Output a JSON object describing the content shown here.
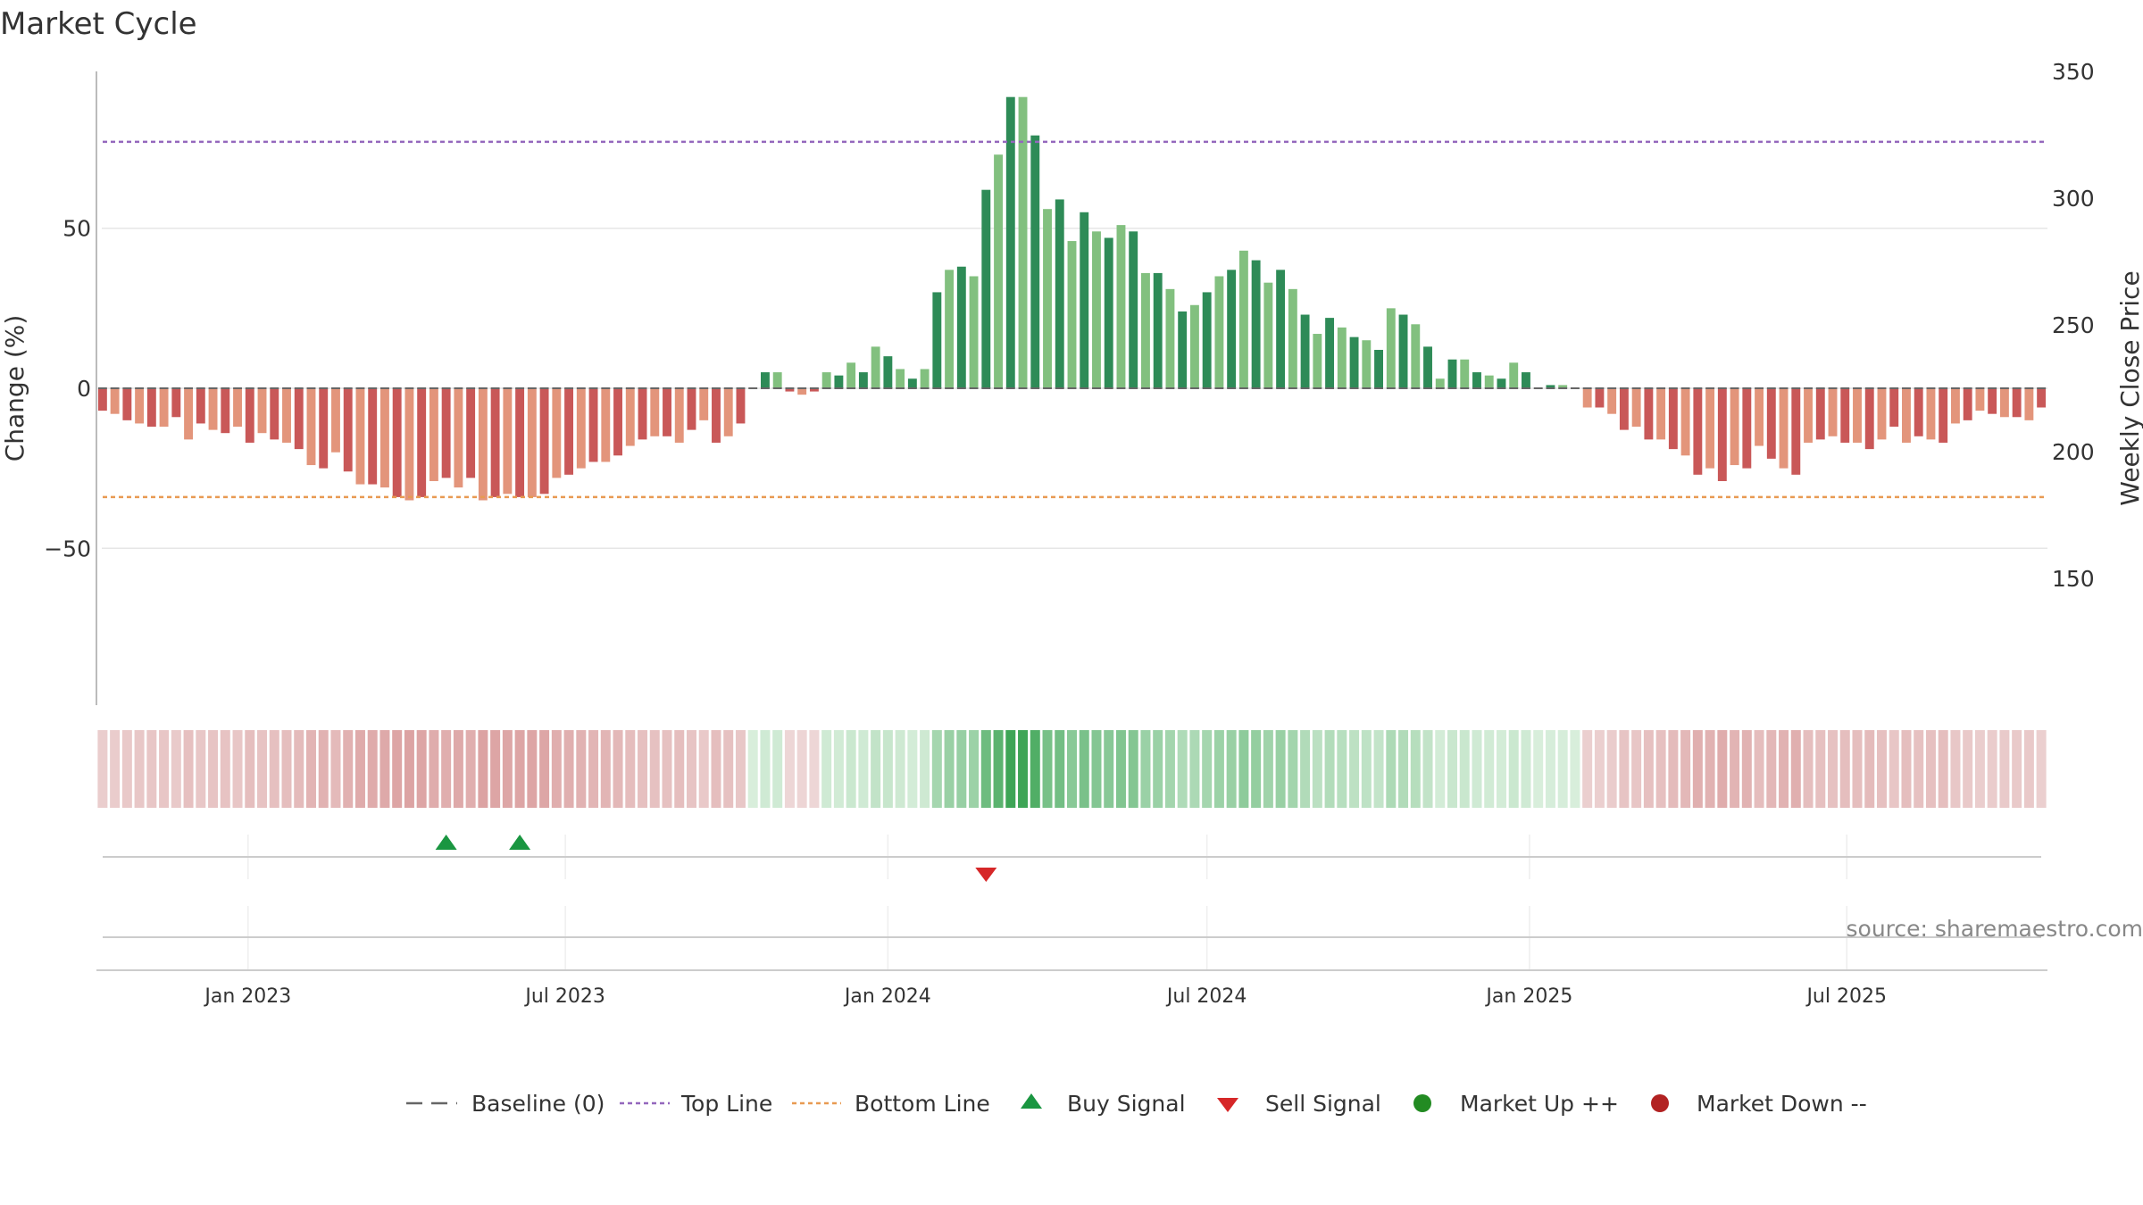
{
  "chart_data": {
    "type": "bar",
    "title": "Market Cycle",
    "ylabel_left": "Change (%)",
    "ylabel_right": "Weekly Close Price",
    "source": "source: sharemaestro.com",
    "x_ticks": [
      "Jan 2023",
      "Jul 2023",
      "Jan 2024",
      "Jul 2024",
      "Jan 2025",
      "Jul 2025"
    ],
    "y_left_ticks": [
      "50",
      "0",
      "−50"
    ],
    "y_left_tick_values": [
      50,
      0,
      -50
    ],
    "y_left_range": [
      -99,
      99
    ],
    "y_right_ticks": [
      "350",
      "300",
      "250",
      "200",
      "150"
    ],
    "y_right_tick_values": [
      350,
      300,
      250,
      200,
      150
    ],
    "y_right_range": [
      100,
      350
    ],
    "top_line": 77,
    "bottom_line": -34,
    "grid": true,
    "legend_position": "bottom",
    "legend": [
      "Baseline (0)",
      "Top Line",
      "Bottom Line",
      "Buy Signal",
      "Sell Signal",
      "Market Up ++",
      "Market Down --"
    ],
    "colors": {
      "up_strong": "#2e8b57",
      "up_light": "#82c07f",
      "down_strong": "#c95858",
      "down_light": "#e3957b",
      "top_line": "#9467bd",
      "bottom_line": "#e89a52",
      "buy": "#1a9641",
      "sell": "#d62728",
      "market_up": "#228b22",
      "market_down": "#b22222",
      "baseline": "#666666"
    },
    "start_week": "2022-10-10",
    "weekly_change": [
      -7,
      -8,
      -10,
      -11,
      -12,
      -12,
      -9,
      -16,
      -11,
      -13,
      -14,
      -12,
      -17,
      -14,
      -16,
      -17,
      -19,
      -24,
      -25,
      -20,
      -26,
      -30,
      -30,
      -31,
      -34,
      -35,
      -34,
      -29,
      -28,
      -31,
      -28,
      -35,
      -34,
      -33,
      -34,
      -34,
      -33,
      -28,
      -27,
      -25,
      -23,
      -23,
      -21,
      -18,
      -16,
      -15,
      -15,
      -17,
      -13,
      -10,
      -17,
      -15,
      -11,
      0,
      5,
      5,
      -1,
      -2,
      -1,
      5,
      4,
      8,
      5,
      13,
      10,
      6,
      3,
      6,
      30,
      37,
      38,
      35,
      62,
      73,
      91,
      91,
      79,
      56,
      59,
      46,
      55,
      49,
      47,
      51,
      49,
      36,
      36,
      31,
      24,
      26,
      30,
      35,
      37,
      43,
      40,
      33,
      37,
      31,
      23,
      17,
      22,
      19,
      16,
      15,
      12,
      25,
      23,
      20,
      13,
      3,
      9,
      9,
      5,
      4,
      3,
      8,
      5,
      0,
      1,
      1,
      0,
      -6,
      -6,
      -8,
      -13,
      -12,
      -16,
      -16,
      -19,
      -21,
      -27,
      -25,
      -29,
      -24,
      -25,
      -18,
      -22,
      -25,
      -27,
      -17,
      -16,
      -15,
      -17,
      -17,
      -19,
      -16,
      -12,
      -17,
      -15,
      -16,
      -17,
      -11,
      -10,
      -7,
      -8,
      -9,
      -9,
      -10,
      -6
    ],
    "buy_signals": [
      "2023-04-24",
      "2023-06-05"
    ],
    "sell_signals": [
      "2024-02-26"
    ]
  }
}
